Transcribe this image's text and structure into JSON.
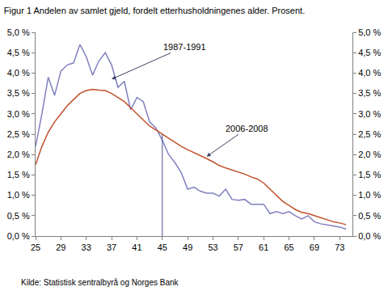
{
  "chart_data": {
    "type": "line",
    "title": "Figur 1 Andelen av samlet gjeld, fordelt etterhusholdningenes alder. Prosent.",
    "source": "Kilde: Statistisk sentralbyrå og Norges Bank",
    "x": [
      25,
      26,
      27,
      28,
      29,
      30,
      31,
      32,
      33,
      34,
      35,
      36,
      37,
      38,
      39,
      40,
      41,
      42,
      43,
      44,
      45,
      46,
      47,
      48,
      49,
      50,
      51,
      52,
      53,
      54,
      55,
      56,
      57,
      58,
      59,
      60,
      61,
      62,
      63,
      64,
      65,
      66,
      67,
      68,
      69,
      70,
      71,
      72,
      73,
      74
    ],
    "series": [
      {
        "name": "1987-1991",
        "color": "#8080c0",
        "values": [
          2.2,
          3.0,
          3.9,
          3.45,
          4.05,
          4.2,
          4.25,
          4.7,
          4.4,
          3.95,
          4.3,
          4.5,
          4.2,
          3.65,
          3.8,
          3.1,
          3.4,
          3.3,
          2.8,
          2.65,
          2.35,
          2.0,
          1.8,
          1.55,
          1.15,
          1.2,
          1.1,
          1.05,
          1.05,
          0.98,
          1.15,
          0.9,
          0.88,
          0.9,
          0.78,
          0.78,
          0.78,
          0.55,
          0.6,
          0.55,
          0.6,
          0.5,
          0.42,
          0.5,
          0.35,
          0.3,
          0.28,
          0.25,
          0.22,
          0.17
        ]
      },
      {
        "name": "2006-2008",
        "color": "#c0502a",
        "values": [
          1.75,
          2.2,
          2.55,
          2.8,
          3.0,
          3.2,
          3.35,
          3.5,
          3.57,
          3.6,
          3.58,
          3.57,
          3.5,
          3.4,
          3.3,
          3.15,
          3.0,
          2.85,
          2.7,
          2.6,
          2.5,
          2.4,
          2.3,
          2.2,
          2.12,
          2.05,
          1.98,
          1.9,
          1.82,
          1.73,
          1.67,
          1.62,
          1.57,
          1.52,
          1.45,
          1.4,
          1.3,
          1.15,
          1.0,
          0.85,
          0.75,
          0.65,
          0.58,
          0.55,
          0.5,
          0.45,
          0.4,
          0.35,
          0.32,
          0.28
        ]
      }
    ],
    "annotations": [
      {
        "text": "1987-1991",
        "x": 37,
        "y": 3.85
      },
      {
        "text": "2006-2008",
        "x": 52,
        "y": 1.95
      }
    ],
    "vertical_line": {
      "x": 45,
      "y": 2.5
    },
    "xlim": [
      25,
      75
    ],
    "xticks": [
      25,
      29,
      33,
      37,
      41,
      45,
      49,
      53,
      57,
      61,
      65,
      69,
      73
    ],
    "ylim": [
      0,
      5
    ],
    "yticks": [
      {
        "value": 0,
        "label": "0,0 %"
      },
      {
        "value": 0.5,
        "label": "0,5 %"
      },
      {
        "value": 1,
        "label": "1,0 %"
      },
      {
        "value": 1.5,
        "label": "1,5 %"
      },
      {
        "value": 2,
        "label": "2,0 %"
      },
      {
        "value": 2.5,
        "label": "2,5 %"
      },
      {
        "value": 3,
        "label": "3,0 %"
      },
      {
        "value": 3.5,
        "label": "3,5 %"
      },
      {
        "value": 4,
        "label": "4,0 %"
      },
      {
        "value": 4.5,
        "label": "4,5 %"
      },
      {
        "value": 5,
        "label": "5,0 %"
      }
    ],
    "y2lim": [
      0,
      5
    ],
    "y2ticks": [
      {
        "value": 0,
        "label": "0,0 %"
      },
      {
        "value": 0.5,
        "label": "0,5 %"
      },
      {
        "value": 1,
        "label": "1,0 %"
      },
      {
        "value": 1.5,
        "label": "1,5 %"
      },
      {
        "value": 2,
        "label": "2,0 %"
      },
      {
        "value": 2.5,
        "label": "2,5 %"
      },
      {
        "value": 3,
        "label": "3,0 %"
      },
      {
        "value": 3.5,
        "label": "3,5 %"
      },
      {
        "value": 4,
        "label": "4,0 %"
      },
      {
        "value": 4.5,
        "label": "4,5 %"
      },
      {
        "value": 5,
        "label": "5,0 %"
      }
    ],
    "grid": false,
    "legend": "none"
  }
}
